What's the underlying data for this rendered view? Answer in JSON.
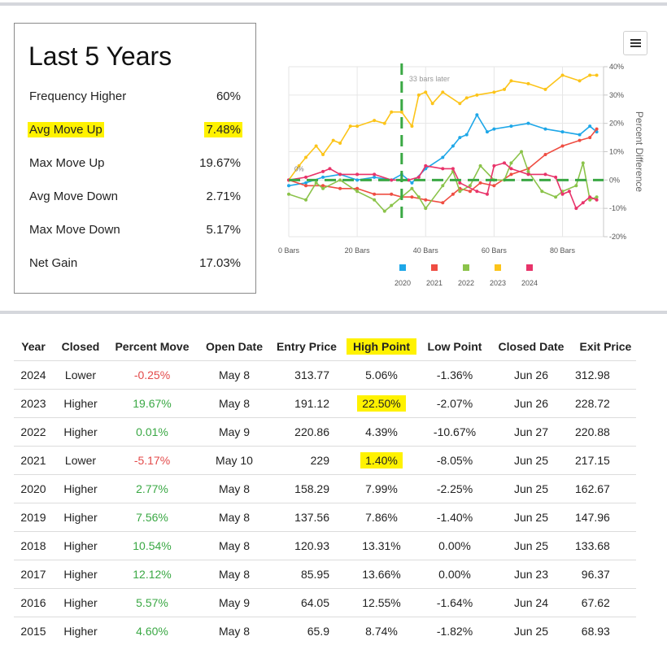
{
  "stats": {
    "title": "Last 5 Years",
    "rows": [
      {
        "label": "Frequency Higher",
        "value": "60%"
      },
      {
        "label": "Avg Move Up",
        "value": "7.48%"
      },
      {
        "label": "Max Move Up",
        "value": "19.67%"
      },
      {
        "label": "Avg Move Down",
        "value": "2.71%"
      },
      {
        "label": "Max Move Down",
        "value": "5.17%"
      },
      {
        "label": "Net Gain",
        "value": "17.03%"
      }
    ]
  },
  "colors": {
    "highlight": "#fff200",
    "positive": "#3aa844",
    "negative": "#e34a4a",
    "marker": "#3aa844"
  },
  "chart_data": {
    "type": "line",
    "x_unit": "Bars",
    "xlim": [
      0,
      92
    ],
    "ylim": [
      -20,
      40
    ],
    "x_ticks": [
      0,
      20,
      40,
      60,
      80
    ],
    "x_tick_labels": [
      "0 Bars",
      "20 Bars",
      "40 Bars",
      "60 Bars",
      "80 Bars"
    ],
    "y_ticks": [
      -20,
      -10,
      0,
      10,
      20,
      30,
      40
    ],
    "y_tick_labels": [
      "-20%",
      "-10%",
      "0%",
      "10%",
      "20%",
      "30%",
      "40%"
    ],
    "ylabel": "Percent Difference",
    "zero_label": "0%",
    "marker_x": 33,
    "marker_label": "33 bars later",
    "grid": true,
    "legend": "bottom",
    "series": [
      {
        "name": "2020",
        "color": "#1ea7e8",
        "points": [
          [
            0,
            -2
          ],
          [
            5,
            -1
          ],
          [
            10,
            1
          ],
          [
            15,
            2
          ],
          [
            20,
            0
          ],
          [
            25,
            1
          ],
          [
            30,
            0
          ],
          [
            33,
            2
          ],
          [
            36,
            -1
          ],
          [
            40,
            4
          ],
          [
            45,
            8
          ],
          [
            48,
            12
          ],
          [
            50,
            15
          ],
          [
            52,
            16
          ],
          [
            55,
            23
          ],
          [
            58,
            17
          ],
          [
            60,
            18
          ],
          [
            65,
            19
          ],
          [
            70,
            20
          ],
          [
            75,
            18
          ],
          [
            80,
            17
          ],
          [
            85,
            16
          ],
          [
            88,
            19
          ],
          [
            90,
            17
          ]
        ]
      },
      {
        "name": "2021",
        "color": "#ef4d42",
        "points": [
          [
            0,
            0
          ],
          [
            5,
            -2
          ],
          [
            10,
            -2
          ],
          [
            15,
            -3
          ],
          [
            20,
            -3
          ],
          [
            25,
            -5
          ],
          [
            30,
            -5
          ],
          [
            33,
            -6
          ],
          [
            36,
            -6
          ],
          [
            40,
            -7
          ],
          [
            45,
            -8
          ],
          [
            48,
            -5
          ],
          [
            50,
            -3
          ],
          [
            53,
            -4
          ],
          [
            56,
            -1
          ],
          [
            60,
            -2
          ],
          [
            65,
            2
          ],
          [
            70,
            4
          ],
          [
            75,
            9
          ],
          [
            80,
            12
          ],
          [
            85,
            14
          ],
          [
            88,
            15
          ],
          [
            90,
            18
          ]
        ]
      },
      {
        "name": "2022",
        "color": "#8bc34a",
        "points": [
          [
            0,
            -5
          ],
          [
            5,
            -7
          ],
          [
            8,
            -1
          ],
          [
            10,
            -3
          ],
          [
            15,
            0
          ],
          [
            20,
            -4
          ],
          [
            25,
            -7
          ],
          [
            28,
            -11
          ],
          [
            30,
            -9
          ],
          [
            33,
            -6
          ],
          [
            36,
            -3
          ],
          [
            38,
            -6
          ],
          [
            40,
            -10
          ],
          [
            45,
            -2
          ],
          [
            48,
            3
          ],
          [
            50,
            -4
          ],
          [
            53,
            -2
          ],
          [
            56,
            5
          ],
          [
            60,
            0
          ],
          [
            63,
            0
          ],
          [
            65,
            6
          ],
          [
            68,
            10
          ],
          [
            70,
            3
          ],
          [
            74,
            -4
          ],
          [
            78,
            -6
          ],
          [
            80,
            -4
          ],
          [
            84,
            -2
          ],
          [
            86,
            6
          ],
          [
            88,
            -7
          ],
          [
            90,
            -6
          ]
        ]
      },
      {
        "name": "2023",
        "color": "#fcc419",
        "points": [
          [
            0,
            0
          ],
          [
            3,
            5
          ],
          [
            5,
            8
          ],
          [
            8,
            12
          ],
          [
            10,
            9
          ],
          [
            13,
            14
          ],
          [
            15,
            13
          ],
          [
            18,
            19
          ],
          [
            20,
            19
          ],
          [
            25,
            21
          ],
          [
            28,
            20
          ],
          [
            30,
            24
          ],
          [
            33,
            24
          ],
          [
            36,
            19
          ],
          [
            38,
            30
          ],
          [
            40,
            31
          ],
          [
            42,
            27
          ],
          [
            45,
            31
          ],
          [
            50,
            27
          ],
          [
            52,
            29
          ],
          [
            55,
            30
          ],
          [
            60,
            31
          ],
          [
            63,
            32
          ],
          [
            65,
            35
          ],
          [
            70,
            34
          ],
          [
            75,
            32
          ],
          [
            80,
            37
          ],
          [
            85,
            35
          ],
          [
            88,
            37
          ],
          [
            90,
            37
          ]
        ]
      },
      {
        "name": "2024",
        "color": "#e8336a",
        "points": [
          [
            0,
            0
          ],
          [
            5,
            1
          ],
          [
            10,
            3
          ],
          [
            12,
            4
          ],
          [
            15,
            2
          ],
          [
            20,
            2
          ],
          [
            25,
            2
          ],
          [
            30,
            0
          ],
          [
            35,
            0
          ],
          [
            38,
            1
          ],
          [
            40,
            5
          ],
          [
            45,
            4
          ],
          [
            48,
            4
          ],
          [
            50,
            -1
          ],
          [
            55,
            -4
          ],
          [
            58,
            -5
          ],
          [
            60,
            5
          ],
          [
            63,
            6
          ],
          [
            65,
            4
          ],
          [
            70,
            2
          ],
          [
            75,
            2
          ],
          [
            78,
            1
          ],
          [
            80,
            -5
          ],
          [
            82,
            -4
          ],
          [
            84,
            -10
          ],
          [
            86,
            -8
          ],
          [
            88,
            -6
          ],
          [
            90,
            -7
          ]
        ]
      }
    ]
  },
  "table": {
    "headers": [
      "Year",
      "Closed",
      "Percent Move",
      "Open Date",
      "Entry Price",
      "High Point",
      "Low Point",
      "Closed Date",
      "Exit Price"
    ],
    "rows": [
      {
        "year": "2024",
        "closed": "Lower",
        "move": "-0.25%",
        "open": "May 8",
        "entry": "313.77",
        "high": "5.06%",
        "low": "-1.36%",
        "closedDate": "Jun 26",
        "exit": "312.98"
      },
      {
        "year": "2023",
        "closed": "Higher",
        "move": "19.67%",
        "open": "May 8",
        "entry": "191.12",
        "high": "22.50%",
        "low": "-2.07%",
        "closedDate": "Jun 26",
        "exit": "228.72"
      },
      {
        "year": "2022",
        "closed": "Higher",
        "move": "0.01%",
        "open": "May 9",
        "entry": "220.86",
        "high": "4.39%",
        "low": "-10.67%",
        "closedDate": "Jun 27",
        "exit": "220.88"
      },
      {
        "year": "2021",
        "closed": "Lower",
        "move": "-5.17%",
        "open": "May 10",
        "entry": "229",
        "high": "1.40%",
        "low": "-8.05%",
        "closedDate": "Jun 25",
        "exit": "217.15"
      },
      {
        "year": "2020",
        "closed": "Higher",
        "move": "2.77%",
        "open": "May 8",
        "entry": "158.29",
        "high": "7.99%",
        "low": "-2.25%",
        "closedDate": "Jun 25",
        "exit": "162.67"
      },
      {
        "year": "2019",
        "closed": "Higher",
        "move": "7.56%",
        "open": "May 8",
        "entry": "137.56",
        "high": "7.86%",
        "low": "-1.40%",
        "closedDate": "Jun 25",
        "exit": "147.96"
      },
      {
        "year": "2018",
        "closed": "Higher",
        "move": "10.54%",
        "open": "May 8",
        "entry": "120.93",
        "high": "13.31%",
        "low": "0.00%",
        "closedDate": "Jun 25",
        "exit": "133.68"
      },
      {
        "year": "2017",
        "closed": "Higher",
        "move": "12.12%",
        "open": "May 8",
        "entry": "85.95",
        "high": "13.66%",
        "low": "0.00%",
        "closedDate": "Jun 23",
        "exit": "96.37"
      },
      {
        "year": "2016",
        "closed": "Higher",
        "move": "5.57%",
        "open": "May 9",
        "entry": "64.05",
        "high": "12.55%",
        "low": "-1.64%",
        "closedDate": "Jun 24",
        "exit": "67.62"
      },
      {
        "year": "2015",
        "closed": "Higher",
        "move": "4.60%",
        "open": "May 8",
        "entry": "65.9",
        "high": "8.74%",
        "low": "-1.82%",
        "closedDate": "Jun 25",
        "exit": "68.93"
      }
    ],
    "highlight_header": 5,
    "highlight_cells": [
      [
        1,
        "high"
      ],
      [
        3,
        "high"
      ]
    ]
  }
}
